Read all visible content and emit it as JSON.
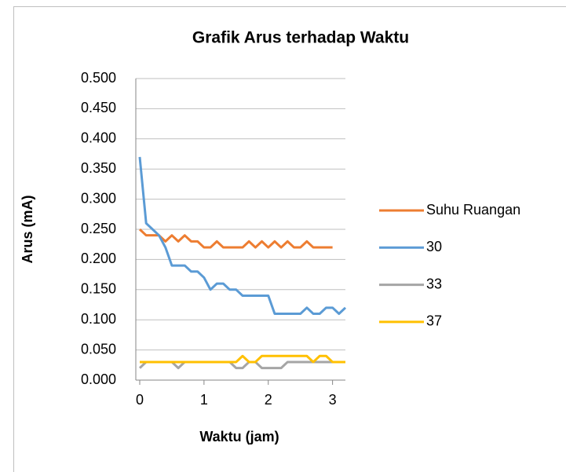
{
  "chart_data": {
    "type": "line",
    "title": "Grafik Arus terhadap Waktu",
    "x_label": "Waktu (jam)",
    "y_label": "Arus (mA)",
    "x": [
      0,
      0.1,
      0.2,
      0.3,
      0.4,
      0.5,
      0.6,
      0.7,
      0.8,
      0.9,
      1.0,
      1.1,
      1.2,
      1.3,
      1.4,
      1.5,
      1.6,
      1.7,
      1.8,
      1.9,
      2.0,
      2.1,
      2.2,
      2.3,
      2.4,
      2.5,
      2.6,
      2.7,
      2.8,
      2.9,
      3.0,
      3.1,
      3.2
    ],
    "series": [
      {
        "name": "Suhu Ruangan",
        "color": "#ed7d31",
        "values": [
          0.25,
          0.24,
          0.24,
          0.24,
          0.23,
          0.24,
          0.23,
          0.24,
          0.23,
          0.23,
          0.22,
          0.22,
          0.23,
          0.22,
          0.22,
          0.22,
          0.22,
          0.23,
          0.22,
          0.23,
          0.22,
          0.23,
          0.22,
          0.23,
          0.22,
          0.22,
          0.23,
          0.22,
          0.22,
          0.22,
          0.22,
          null,
          null
        ]
      },
      {
        "name": "30",
        "color": "#5b9bd5",
        "values": [
          0.37,
          0.26,
          0.25,
          0.24,
          0.22,
          0.19,
          0.19,
          0.19,
          0.18,
          0.18,
          0.17,
          0.15,
          0.16,
          0.16,
          0.15,
          0.15,
          0.14,
          0.14,
          0.14,
          0.14,
          0.14,
          0.11,
          0.11,
          0.11,
          0.11,
          0.11,
          0.12,
          0.11,
          0.11,
          0.12,
          0.12,
          0.11,
          0.12
        ]
      },
      {
        "name": "33",
        "color": "#a5a5a5",
        "values": [
          0.02,
          0.03,
          0.03,
          0.03,
          0.03,
          0.03,
          0.02,
          0.03,
          0.03,
          0.03,
          0.03,
          0.03,
          0.03,
          0.03,
          0.03,
          0.02,
          0.02,
          0.03,
          0.03,
          0.02,
          0.02,
          0.02,
          0.02,
          0.03,
          0.03,
          0.03,
          0.03,
          0.03,
          0.03,
          0.03,
          0.03,
          0.03,
          0.03
        ]
      },
      {
        "name": "37",
        "color": "#ffc000",
        "values": [
          0.03,
          0.03,
          0.03,
          0.03,
          0.03,
          0.03,
          0.03,
          0.03,
          0.03,
          0.03,
          0.03,
          0.03,
          0.03,
          0.03,
          0.03,
          0.03,
          0.04,
          0.03,
          0.03,
          0.04,
          0.04,
          0.04,
          0.04,
          0.04,
          0.04,
          0.04,
          0.04,
          0.03,
          0.04,
          0.04,
          0.03,
          0.03,
          0.03
        ]
      }
    ],
    "xlim": [
      0,
      3.2
    ],
    "ylim": [
      0,
      0.5
    ],
    "xticks": [
      0,
      1,
      2,
      3
    ],
    "yticks": [
      {
        "value": 0,
        "label": "0.000"
      },
      {
        "value": 0.05,
        "label": "0.050"
      },
      {
        "value": 0.1,
        "label": "0.100"
      },
      {
        "value": 0.15,
        "label": "0.150"
      },
      {
        "value": 0.2,
        "label": "0.200"
      },
      {
        "value": 0.25,
        "label": "0.250"
      },
      {
        "value": 0.3,
        "label": "0.300"
      },
      {
        "value": 0.35,
        "label": "0.350"
      },
      {
        "value": 0.4,
        "label": "0.400"
      },
      {
        "value": 0.45,
        "label": "0.450"
      },
      {
        "value": 0.5,
        "label": "0.500"
      }
    ],
    "grid": true,
    "legend": "right"
  }
}
